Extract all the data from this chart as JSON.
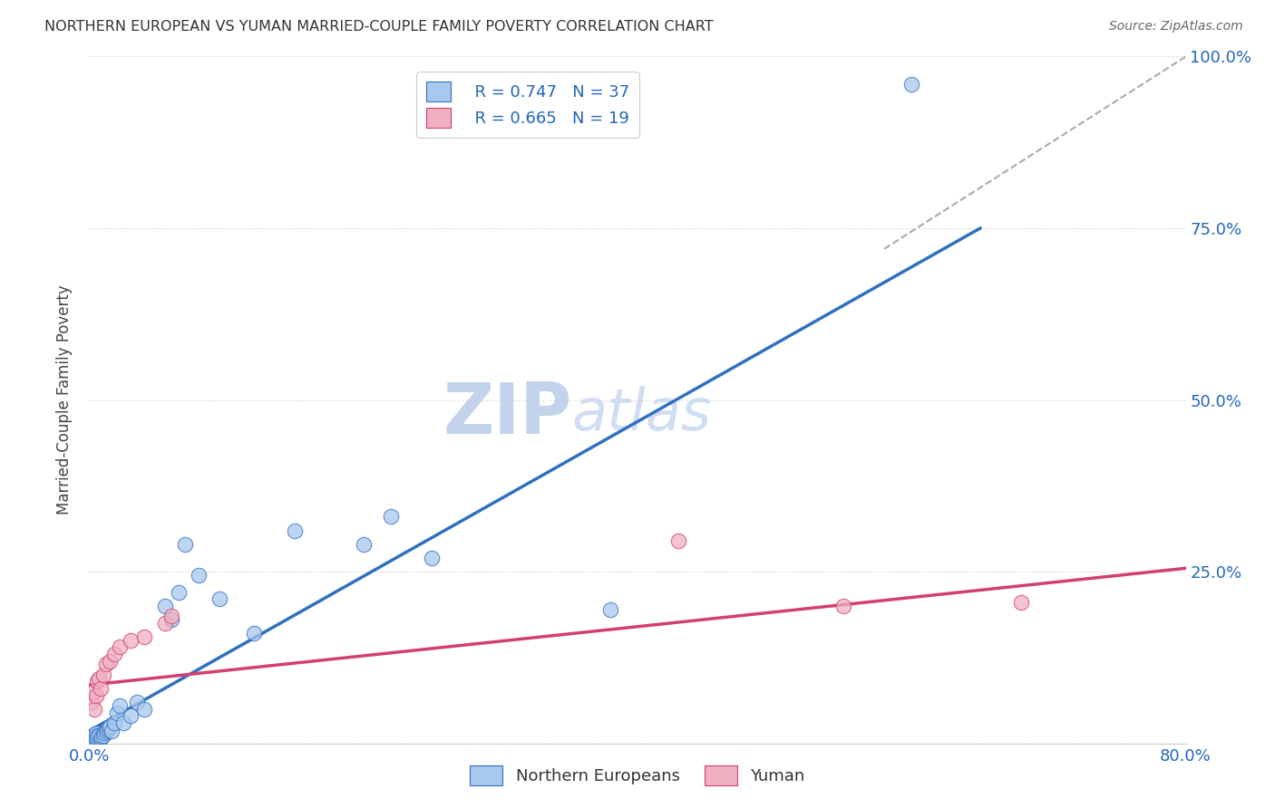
{
  "title": "NORTHERN EUROPEAN VS YUMAN MARRIED-COUPLE FAMILY POVERTY CORRELATION CHART",
  "source": "Source: ZipAtlas.com",
  "ylabel": "Married-Couple Family Poverty",
  "xlim": [
    0,
    0.8
  ],
  "ylim": [
    0,
    1.0
  ],
  "blue_color": "#a8c8ee",
  "pink_color": "#f0b0c0",
  "blue_line_color": "#3070c0",
  "pink_line_color": "#d04070",
  "legend_r_blue": "R = 0.747",
  "legend_n_blue": "N = 37",
  "legend_r_pink": "R = 0.665",
  "legend_n_pink": "N = 19",
  "legend_label_blue": "Northern Europeans",
  "legend_label_pink": "Yuman",
  "watermark_zip": "ZIP",
  "watermark_atlas": "atlas",
  "watermark_color_zip": "#b8cce8",
  "watermark_color_atlas": "#c8d8f0",
  "blue_line_x0": 0.0,
  "blue_line_y0": 0.018,
  "blue_line_x1": 0.65,
  "blue_line_y1": 0.75,
  "pink_line_x0": 0.0,
  "pink_line_y0": 0.085,
  "pink_line_x1": 0.8,
  "pink_line_y1": 0.255,
  "dash_line_x0": 0.58,
  "dash_line_y0": 0.72,
  "dash_line_x1": 0.8,
  "dash_line_y1": 1.0,
  "blue_x": [
    0.002,
    0.003,
    0.003,
    0.004,
    0.005,
    0.005,
    0.006,
    0.007,
    0.008,
    0.009,
    0.01,
    0.011,
    0.012,
    0.013,
    0.014,
    0.015,
    0.016,
    0.018,
    0.02,
    0.022,
    0.025,
    0.03,
    0.035,
    0.04,
    0.055,
    0.06,
    0.065,
    0.07,
    0.08,
    0.095,
    0.12,
    0.15,
    0.2,
    0.22,
    0.25,
    0.38,
    0.6
  ],
  "blue_y": [
    0.005,
    0.008,
    0.01,
    0.012,
    0.008,
    0.015,
    0.01,
    0.012,
    0.007,
    0.01,
    0.012,
    0.015,
    0.018,
    0.02,
    0.022,
    0.025,
    0.018,
    0.03,
    0.045,
    0.055,
    0.03,
    0.04,
    0.06,
    0.05,
    0.2,
    0.18,
    0.22,
    0.29,
    0.245,
    0.21,
    0.16,
    0.31,
    0.29,
    0.33,
    0.27,
    0.195,
    0.96
  ],
  "pink_x": [
    0.002,
    0.003,
    0.004,
    0.005,
    0.006,
    0.007,
    0.008,
    0.01,
    0.012,
    0.015,
    0.018,
    0.022,
    0.03,
    0.04,
    0.055,
    0.06,
    0.43,
    0.55,
    0.68
  ],
  "pink_y": [
    0.06,
    0.075,
    0.05,
    0.07,
    0.09,
    0.095,
    0.08,
    0.1,
    0.115,
    0.12,
    0.13,
    0.14,
    0.15,
    0.155,
    0.175,
    0.185,
    0.295,
    0.2,
    0.205
  ]
}
